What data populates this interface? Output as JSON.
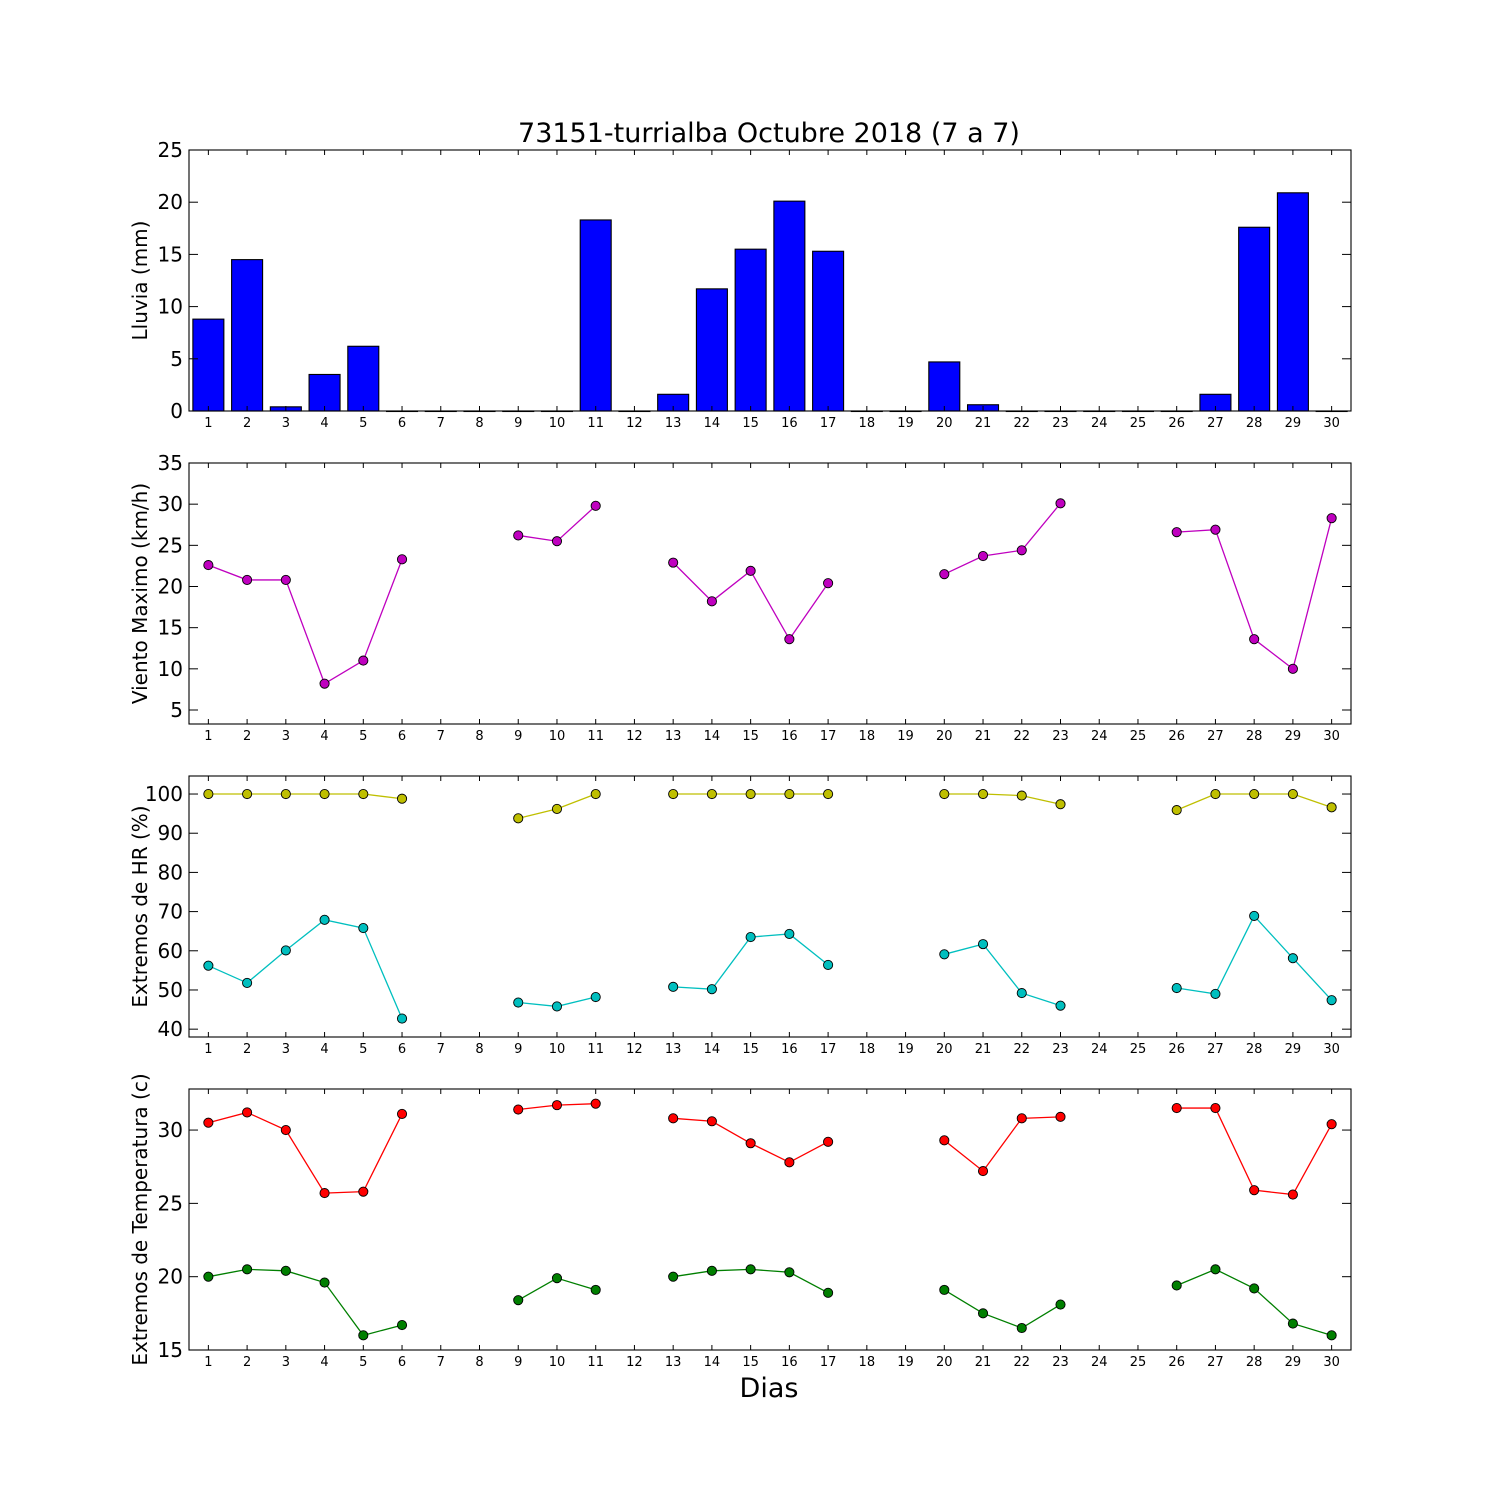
{
  "chart_data": {
    "title": "73151-turrialba Octubre 2018  (7 a 7)",
    "xlabel": "Dias",
    "days": [
      1,
      2,
      3,
      4,
      5,
      6,
      7,
      8,
      9,
      10,
      11,
      12,
      13,
      14,
      15,
      16,
      17,
      18,
      19,
      20,
      21,
      22,
      23,
      24,
      25,
      26,
      27,
      28,
      29,
      30
    ],
    "xlim": [
      0.5,
      30.5
    ],
    "panels": [
      {
        "type": "bar",
        "ylabel": "Lluvia (mm)",
        "ylim": [
          0,
          25
        ],
        "yticks": [
          0,
          5,
          10,
          15,
          20,
          25
        ],
        "series": [
          {
            "color": "#0000ff",
            "values": [
              8.8,
              14.5,
              0.4,
              3.5,
              6.2,
              0,
              0,
              0,
              0,
              0,
              18.3,
              0,
              1.6,
              11.7,
              15.5,
              20.1,
              15.3,
              0,
              0,
              4.7,
              0.6,
              0,
              0,
              0,
              0,
              0,
              1.6,
              17.6,
              20.9,
              0
            ]
          }
        ]
      },
      {
        "type": "line",
        "ylabel": "Viento Maximo (km/h)",
        "ylim": [
          3.3,
          35
        ],
        "yticks": [
          5,
          10,
          15,
          20,
          25,
          30,
          35
        ],
        "series": [
          {
            "color": "#bf00bf",
            "values": [
              22.6,
              20.8,
              20.8,
              8.2,
              11.0,
              23.3,
              null,
              null,
              26.2,
              25.5,
              29.8,
              null,
              22.9,
              18.2,
              21.9,
              13.6,
              20.4,
              null,
              null,
              21.5,
              23.7,
              24.4,
              30.1,
              null,
              null,
              26.6,
              26.9,
              13.6,
              10.0,
              28.3
            ]
          }
        ]
      },
      {
        "type": "line",
        "ylabel": "Extremos de HR (%)",
        "ylim": [
          38,
          104.6
        ],
        "yticks": [
          40,
          50,
          60,
          70,
          80,
          90,
          100
        ],
        "series": [
          {
            "color": "#bfbf00",
            "values": [
              100,
              100,
              100,
              100,
              100,
              98.8,
              null,
              null,
              93.8,
              96.2,
              100,
              null,
              100,
              100,
              100,
              100,
              100,
              null,
              null,
              100,
              100,
              99.6,
              97.4,
              null,
              null,
              95.9,
              100,
              100,
              100,
              96.6
            ]
          },
          {
            "color": "#00bfbf",
            "values": [
              56.2,
              51.8,
              60.1,
              67.9,
              65.8,
              42.7,
              null,
              null,
              46.8,
              45.8,
              48.2,
              null,
              50.8,
              50.2,
              63.5,
              64.3,
              56.4,
              null,
              null,
              59.1,
              61.7,
              49.2,
              46.0,
              null,
              null,
              50.5,
              49.0,
              68.9,
              58.1,
              47.4
            ]
          }
        ]
      },
      {
        "type": "line",
        "ylabel": "Extremos de Temperatura (c)",
        "ylim": [
          15,
          32.8
        ],
        "yticks": [
          15,
          20,
          25,
          30
        ],
        "series": [
          {
            "color": "#ff0000",
            "values": [
              30.5,
              31.2,
              30.0,
              25.7,
              25.8,
              31.1,
              null,
              null,
              31.4,
              31.7,
              31.8,
              null,
              30.8,
              30.6,
              29.1,
              27.8,
              29.2,
              null,
              null,
              29.3,
              27.2,
              30.8,
              30.9,
              null,
              null,
              31.5,
              31.5,
              25.9,
              25.6,
              30.4
            ]
          },
          {
            "color": "#007f00",
            "values": [
              20.0,
              20.5,
              20.4,
              19.6,
              16.0,
              16.7,
              null,
              null,
              18.4,
              19.9,
              19.1,
              null,
              20.0,
              20.4,
              20.5,
              20.3,
              18.9,
              null,
              null,
              19.1,
              17.5,
              16.5,
              18.1,
              null,
              null,
              19.4,
              20.5,
              19.2,
              16.8,
              16.0
            ]
          }
        ]
      }
    ]
  }
}
